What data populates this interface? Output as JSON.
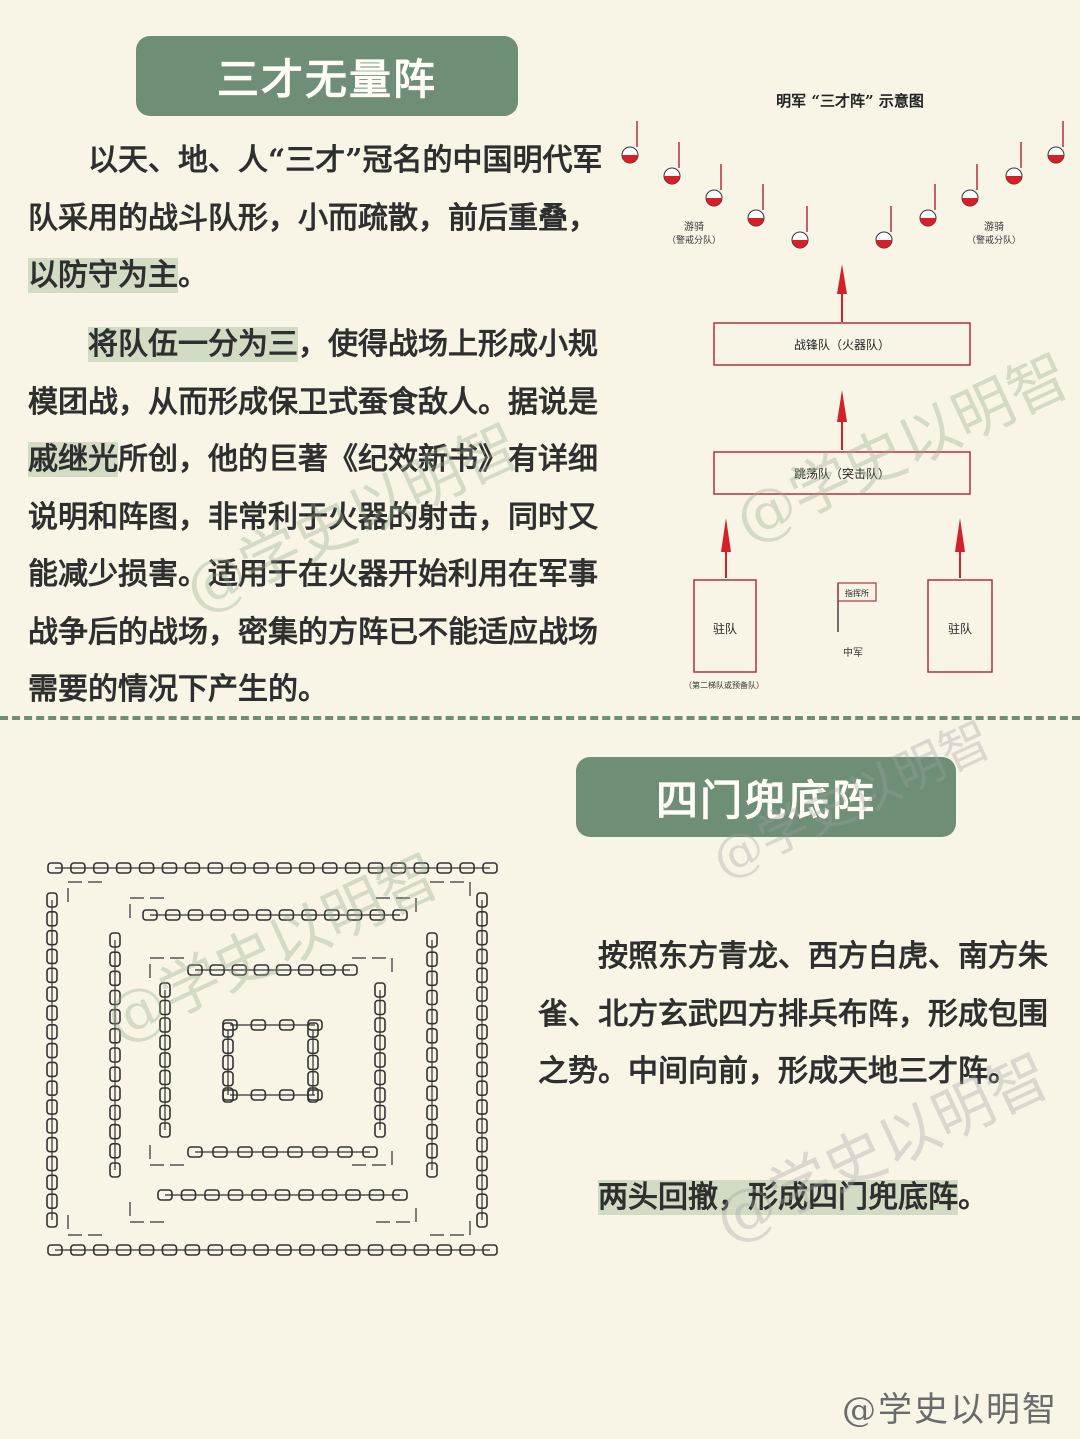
{
  "section1": {
    "title": "三才无量阵",
    "para1": {
      "a": "以天、地、人“三才”冠名的中国明代军队采用的战斗队形，小而疏散，前后重叠，",
      "hl": "以防守为主",
      "b": "。"
    },
    "para2": {
      "hl1": "将队伍一分为三",
      "a": "，使得战场上形成小规模团战，从而形成保卫式蚕食敌人。据说是",
      "hl2": "戚继光",
      "b": "所创，他的巨著《纪效新书》有详细说明和阵图，非常利于火器的射击，同时又能减少损害。适用于在火器开始利用在军事战争后的战场，密集的方阵已不能适应战场需要的情况下产生的。"
    },
    "diagram": {
      "title": "明军 “三才阵” 示意图",
      "scout_left": "游骑",
      "scout_left_sub": "（警戒分队）",
      "scout_right": "游骑",
      "scout_right_sub": "（警戒分队）",
      "vanguard": "战锋队（火器队）",
      "assault": "跳荡队（突击队）",
      "garrison_left": "驻队",
      "garrison_right": "驻队",
      "command": "指挥所",
      "center": "中军",
      "garrison_note": "（第二梯队或预备队）"
    }
  },
  "section2": {
    "title": "四门兜底阵",
    "para1": "按照东方青龙、西方白虎、南方朱雀、北方玄武四方排兵布阵，形成包围之势。中间向前，形成天地三才阵。",
    "para2": {
      "hl": "两头回撤，形成四门兜底阵",
      "b": "。"
    }
  },
  "watermark": "@学史以明智",
  "colors": {
    "accent": "#6e8f76",
    "highlight": "#d2dcc4",
    "background": "#f8f5e6",
    "flag_red": "#d3202a"
  }
}
